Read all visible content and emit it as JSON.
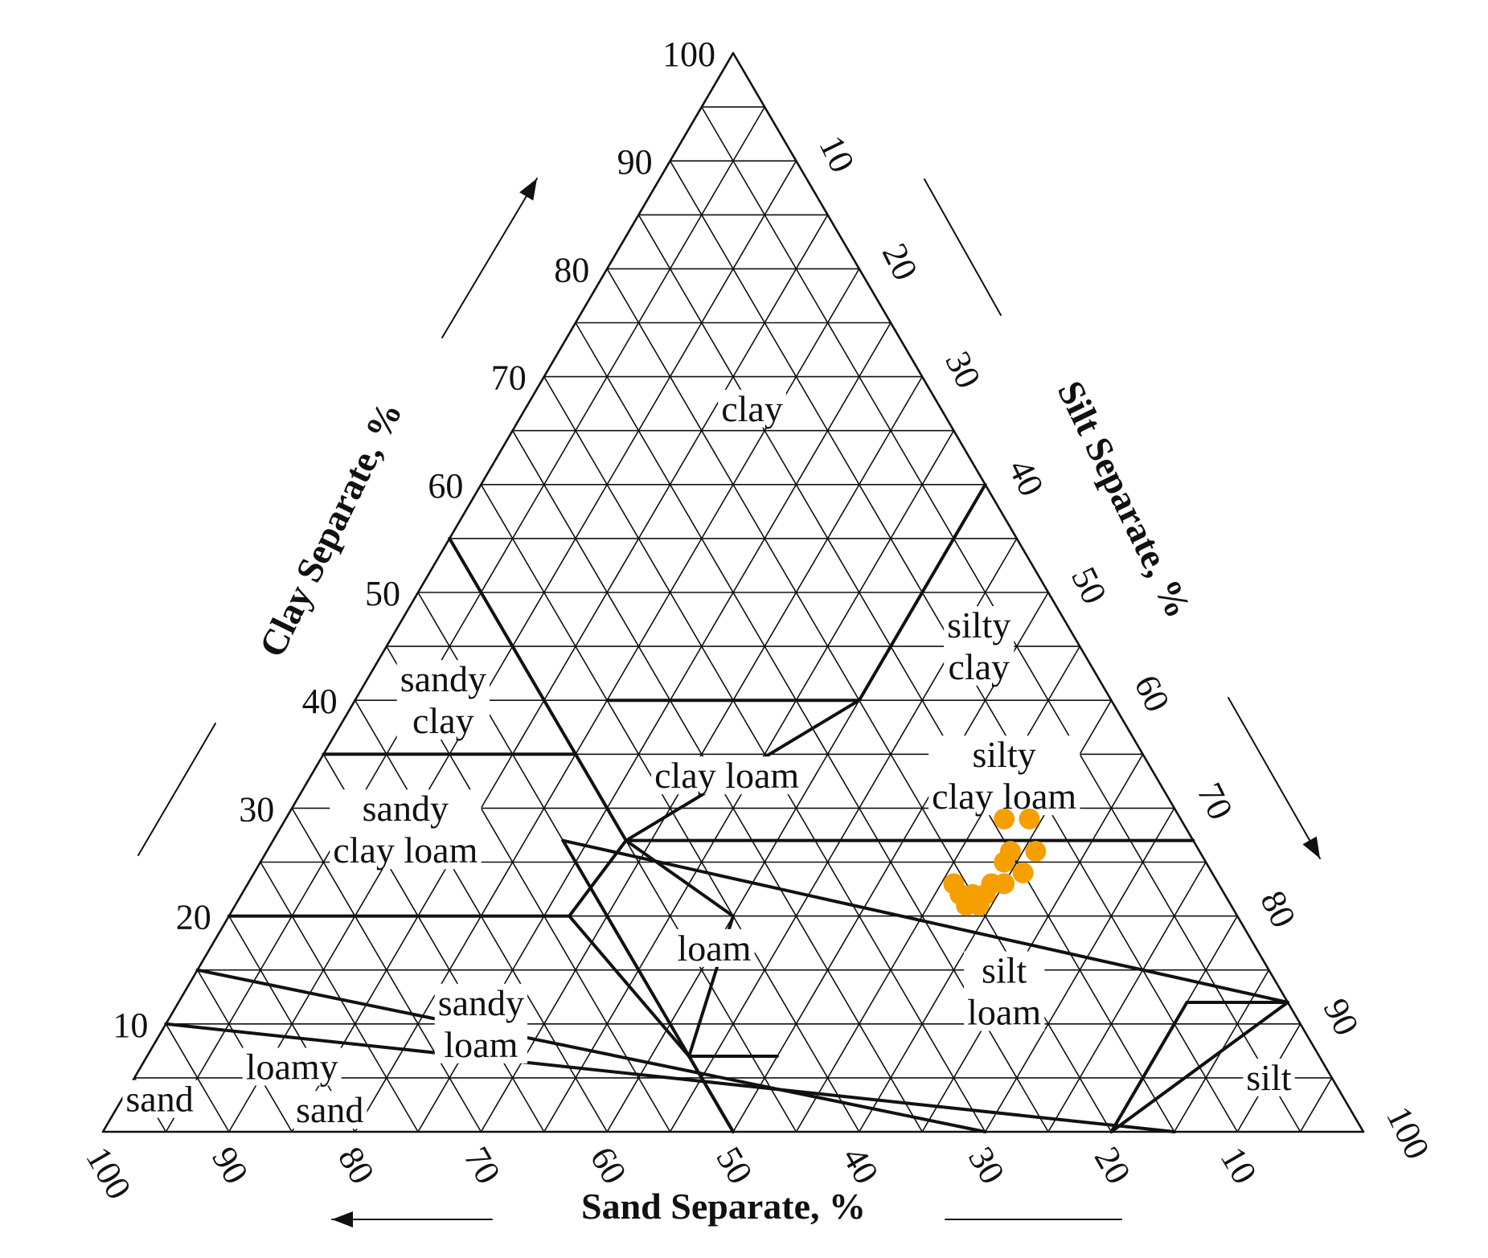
{
  "chart_data": {
    "type": "scatter",
    "layout": "ternary",
    "axis_labels": {
      "clay": "Clay Separate, %",
      "silt": "Silt Separate, %",
      "sand": "Sand Separate, %"
    },
    "ticks": {
      "clay": [
        "10",
        "20",
        "30",
        "40",
        "50",
        "60",
        "70",
        "80",
        "90",
        "100"
      ],
      "silt": [
        "10",
        "20",
        "30",
        "40",
        "50",
        "60",
        "70",
        "80",
        "90",
        "100"
      ],
      "sand": [
        "100",
        "90",
        "80",
        "70",
        "60",
        "50",
        "40",
        "30",
        "20",
        "10"
      ]
    },
    "grid": true,
    "marker_color": "#F5A000",
    "line_color": "#111111",
    "classes": [
      {
        "name": "clay",
        "lines": [
          "clay"
        ],
        "clay": 67,
        "silt": 18
      },
      {
        "name": "silty clay",
        "lines": [
          "silty",
          "clay"
        ],
        "clay": 45,
        "silt": 47
      },
      {
        "name": "sandy clay",
        "lines": [
          "sandy",
          "clay"
        ],
        "clay": 40,
        "silt": 7
      },
      {
        "name": "silty clay loam",
        "lines": [
          "silty",
          "clay loam"
        ],
        "clay": 33,
        "silt": 55
      },
      {
        "name": "clay loam",
        "lines": [
          "clay loam"
        ],
        "clay": 33,
        "silt": 33
      },
      {
        "name": "sandy clay loam",
        "lines": [
          "sandy",
          "clay loam"
        ],
        "clay": 28,
        "silt": 10
      },
      {
        "name": "loam",
        "lines": [
          "loam"
        ],
        "clay": 17,
        "silt": 40
      },
      {
        "name": "silt loam",
        "lines": [
          "silt",
          "loam"
        ],
        "clay": 13,
        "silt": 65
      },
      {
        "name": "sandy loam",
        "lines": [
          "sandy",
          "loam"
        ],
        "clay": 10,
        "silt": 25
      },
      {
        "name": "loamy sand",
        "lines": [
          "loamy"
        ],
        "clay": 6,
        "silt": 12
      },
      {
        "name": "loamy sand (lower line)",
        "lines": [
          "sand"
        ],
        "clay": 2,
        "silt": 17
      },
      {
        "name": "sand",
        "lines": [
          "sand"
        ],
        "clay": 3,
        "silt": 3
      },
      {
        "name": "silt",
        "lines": [
          "silt"
        ],
        "clay": 5,
        "silt": 90
      }
    ],
    "points": [
      {
        "clay": 29,
        "silt": 57
      },
      {
        "clay": 29,
        "silt": 59
      },
      {
        "clay": 26,
        "silt": 59
      },
      {
        "clay": 25,
        "silt": 59
      },
      {
        "clay": 26,
        "silt": 61
      },
      {
        "clay": 24,
        "silt": 61
      },
      {
        "clay": 23,
        "silt": 56
      },
      {
        "clay": 22,
        "silt": 57
      },
      {
        "clay": 22,
        "silt": 58
      },
      {
        "clay": 22,
        "silt": 59
      },
      {
        "clay": 23,
        "silt": 59
      },
      {
        "clay": 23,
        "silt": 60
      },
      {
        "clay": 21,
        "silt": 58
      },
      {
        "clay": 21,
        "silt": 59
      }
    ]
  }
}
